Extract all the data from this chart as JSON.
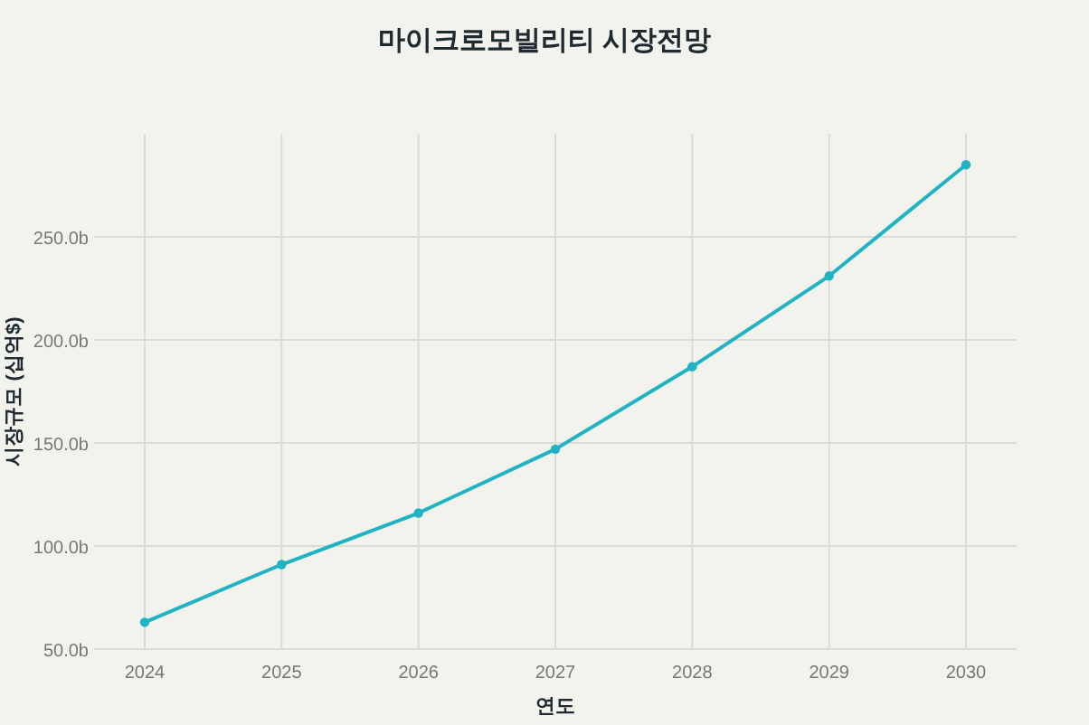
{
  "chart_data": {
    "type": "line",
    "title": "마이크로모빌리티 시장전망",
    "xlabel": "연도",
    "ylabel": "시장규모 (십억$)",
    "x": [
      2024,
      2025,
      2026,
      2027,
      2028,
      2029,
      2030
    ],
    "series": [
      {
        "color": "#1fb3c4",
        "values": [
          63,
          91,
          116,
          147,
          187,
          231,
          285
        ]
      }
    ],
    "xlim": [
      2023.63,
      2030.37
    ],
    "ylim": [
      50,
      300
    ],
    "xticks": [
      2024,
      2025,
      2026,
      2027,
      2028,
      2029,
      2030
    ],
    "yticks": [
      {
        "value": 50,
        "label": "50.0b"
      },
      {
        "value": 100,
        "label": "100.0b"
      },
      {
        "value": 150,
        "label": "150.0b"
      },
      {
        "value": 200,
        "label": "200.0b"
      },
      {
        "value": 250,
        "label": "250.0b"
      }
    ],
    "grid": true,
    "marker": "circle"
  }
}
